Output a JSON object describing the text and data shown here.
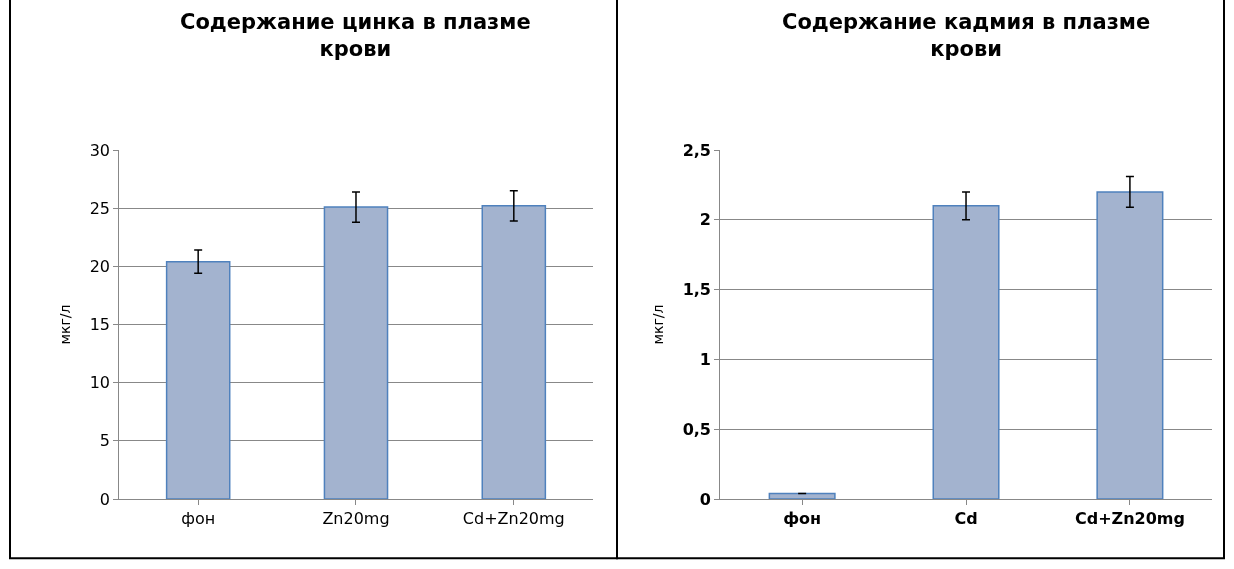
{
  "chart_data": [
    {
      "type": "bar",
      "title": "Содержание цинка в плазме крови",
      "ylabel": "мкг/л",
      "categories": [
        "фон",
        "Zn20mg",
        "Cd+Zn20mg"
      ],
      "values": [
        20.4,
        25.1,
        25.2
      ],
      "errors": [
        1.0,
        1.3,
        1.3
      ],
      "color": "#a3b3cf",
      "ylim": [
        0,
        30
      ],
      "yticks": [
        0,
        5,
        10,
        15,
        20,
        25,
        30
      ],
      "grid": "y"
    },
    {
      "type": "bar",
      "title": "Содержание кадмия в плазме крови",
      "ylabel": "мкг/л",
      "categories": [
        "фон",
        "Cd",
        "Cd+Zn20mg"
      ],
      "values": [
        0.04,
        2.1,
        2.2
      ],
      "errors": [
        null,
        0.1,
        0.11
      ],
      "color": "#a3b3cf",
      "ylim": [
        0,
        2.5
      ],
      "yticks": [
        {
          "value": 0,
          "label": "0"
        },
        {
          "value": 0.5,
          "label": "0,5"
        },
        {
          "value": 1,
          "label": "1"
        },
        {
          "value": 1.5,
          "label": "1,5"
        },
        {
          "value": 2,
          "label": "2"
        },
        {
          "value": 2.5,
          "label": "2,5"
        }
      ],
      "grid": "y"
    }
  ]
}
